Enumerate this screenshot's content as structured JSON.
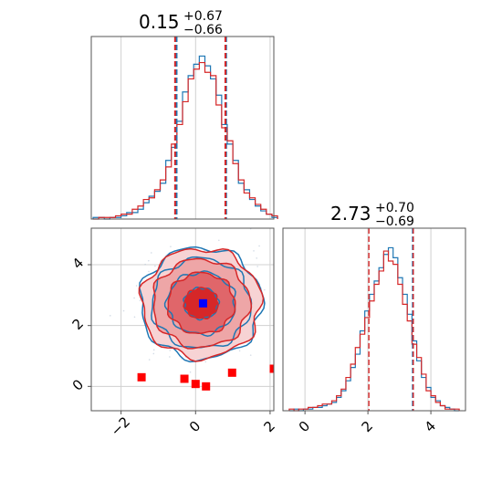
{
  "chart_data": [
    {
      "panel": "hist-x",
      "type": "histogram",
      "title": {
        "value": "0.15",
        "plus": "+0.67",
        "minus": "−0.66"
      },
      "xlim": [
        -2.8,
        2.1
      ],
      "bins_x": [
        -2.75,
        -2.6,
        -2.45,
        -2.3,
        -2.15,
        -2.0,
        -1.85,
        -1.7,
        -1.55,
        -1.4,
        -1.25,
        -1.1,
        -0.95,
        -0.8,
        -0.65,
        -0.5,
        -0.35,
        -0.2,
        -0.05,
        0.1,
        0.25,
        0.4,
        0.55,
        0.7,
        0.85,
        1.0,
        1.15,
        1.3,
        1.45,
        1.6,
        1.75,
        1.9,
        2.05
      ],
      "series": [
        {
          "name": "",
          "color": "#1f77b4",
          "values": [
            1,
            1,
            0,
            1,
            1,
            2,
            4,
            4,
            6,
            10,
            14,
            17,
            22,
            36,
            44,
            60,
            78,
            88,
            95,
            100,
            94,
            86,
            76,
            58,
            46,
            36,
            22,
            18,
            12,
            8,
            5,
            3,
            1
          ]
        },
        {
          "name": "",
          "color": "#d62728",
          "values": [
            0,
            1,
            1,
            1,
            2,
            3,
            3,
            6,
            8,
            12,
            13,
            18,
            24,
            32,
            46,
            58,
            72,
            86,
            92,
            96,
            90,
            88,
            70,
            56,
            48,
            34,
            24,
            16,
            13,
            9,
            6,
            3,
            2
          ]
        }
      ],
      "quantile_lines": {
        "blue": [
          -0.51,
          0.15,
          0.82
        ],
        "red": [
          -0.55,
          0.15,
          0.8
        ]
      }
    },
    {
      "panel": "hist-y",
      "type": "histogram",
      "title": {
        "value": "2.73",
        "plus": "+0.70",
        "minus": "−0.69"
      },
      "xlim": [
        -0.7,
        5.1
      ],
      "bins_x": [
        -0.5,
        -0.35,
        -0.2,
        -0.05,
        0.1,
        0.25,
        0.4,
        0.55,
        0.7,
        0.85,
        1.0,
        1.15,
        1.3,
        1.45,
        1.6,
        1.75,
        1.9,
        2.05,
        2.2,
        2.35,
        2.5,
        2.65,
        2.8,
        2.95,
        3.1,
        3.25,
        3.4,
        3.55,
        3.7,
        3.85,
        4.0,
        4.15,
        4.3,
        4.45,
        4.6,
        4.75,
        4.9
      ],
      "series": [
        {
          "name": "",
          "color": "#1f77b4",
          "values": [
            0,
            1,
            0,
            1,
            1,
            2,
            2,
            3,
            4,
            5,
            8,
            12,
            18,
            26,
            34,
            48,
            60,
            70,
            78,
            86,
            94,
            98,
            92,
            80,
            70,
            58,
            42,
            30,
            20,
            14,
            8,
            6,
            3,
            2,
            1,
            0
          ]
        },
        {
          "name": "",
          "color": "#d62728",
          "values": [
            1,
            0,
            1,
            1,
            2,
            2,
            3,
            4,
            4,
            6,
            9,
            13,
            20,
            28,
            38,
            46,
            56,
            66,
            76,
            84,
            96,
            90,
            88,
            76,
            64,
            54,
            40,
            32,
            22,
            12,
            9,
            5,
            3,
            1,
            1,
            1
          ]
        }
      ],
      "quantile_lines": {
        "blue": [
          2.04,
          2.73,
          3.43
        ],
        "red": [
          2.03,
          2.73,
          3.41
        ]
      }
    },
    {
      "panel": "scatter-2d",
      "type": "contour",
      "xlim": [
        -2.8,
        2.1
      ],
      "ylim": [
        -0.8,
        5.2
      ],
      "xticks": [
        -2,
        0,
        2
      ],
      "yticks": [
        0,
        2,
        4
      ],
      "xtick_labels": [
        "−2",
        "0",
        "2"
      ],
      "ytick_labels": [
        "0",
        "2",
        "4"
      ],
      "center": [
        0.15,
        2.73
      ],
      "contour_radii": [
        [
          0.45,
          0.5
        ],
        [
          0.9,
          1.0
        ],
        [
          1.3,
          1.45
        ],
        [
          1.6,
          1.8
        ]
      ],
      "fill_colors": [
        "#d62728",
        "#e0666a",
        "#eea6a7",
        "#f7d3d4"
      ],
      "blue_marker": {
        "x": 0.2,
        "y": 2.73,
        "color": "#0000ff"
      },
      "red_markers": [
        {
          "x": -1.45,
          "y": 0.3
        },
        {
          "x": -0.3,
          "y": 0.25
        },
        {
          "x": 0.0,
          "y": 0.08
        },
        {
          "x": 0.28,
          "y": 0.0
        },
        {
          "x": 0.98,
          "y": 0.45
        },
        {
          "x": 2.1,
          "y": 0.58
        }
      ]
    }
  ],
  "hist_x_xticks": [
    -2,
    0,
    2
  ],
  "hist_y_xticks": [
    0,
    2,
    4
  ],
  "hist_y_xtick_labels": [
    "0",
    "2",
    "4"
  ]
}
